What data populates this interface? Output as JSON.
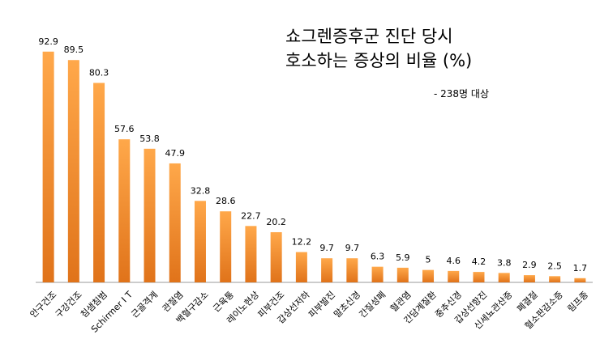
{
  "chart_data": {
    "type": "bar",
    "title": [
      "쇼그렌증후군 진단 당시",
      "호소하는 증상의 비율 (%)"
    ],
    "subtitle": "- 238명 대상",
    "categories": [
      "안구건조",
      "구강건조",
      "침샘침범",
      "Schirmer I T",
      "근골격계",
      "관절염",
      "백혈구감소",
      "근육통",
      "레이노현상",
      "피부건조",
      "갑상선저하",
      "피부발진",
      "말초신경",
      "간질성폐",
      "혈관염",
      "간담계질환",
      "중추신경",
      "갑상선항진",
      "신세뇨관산증",
      "폐결절",
      "혈소판감소증",
      "림프종"
    ],
    "values": [
      92.9,
      89.5,
      80.3,
      57.6,
      53.8,
      47.9,
      32.8,
      28.6,
      22.7,
      20.2,
      12.2,
      9.7,
      9.7,
      6.3,
      5.9,
      5,
      4.6,
      4.2,
      3.8,
      2.9,
      2.5,
      1.7
    ],
    "color": "#f28c28",
    "ylim": [
      0,
      100
    ]
  }
}
